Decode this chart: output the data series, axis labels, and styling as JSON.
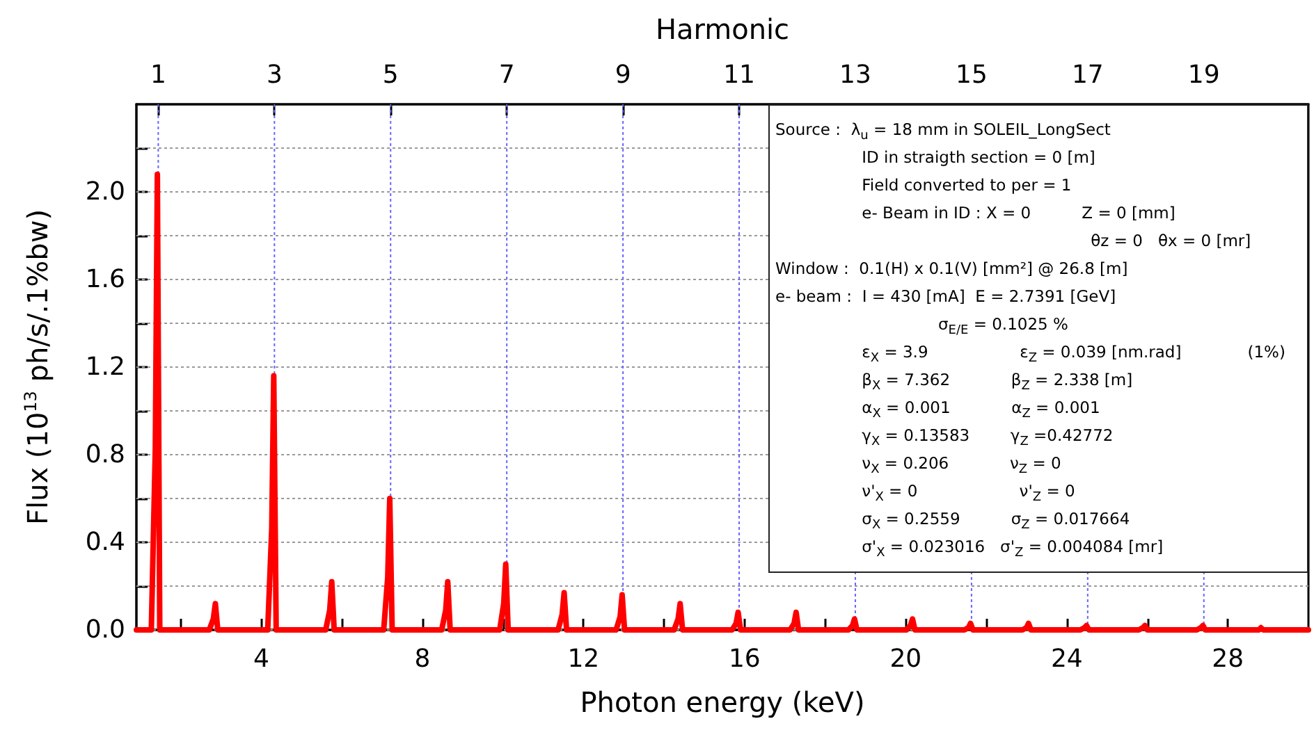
{
  "chart_data": {
    "type": "line",
    "xlabel": "Photon energy (keV)",
    "ylabel": "Flux (10$^{13}$ ph/s/.1%bw)",
    "x2label": "Harmonic",
    "xlim": [
      0.9,
      30
    ],
    "xticks": [
      {
        "value": 2,
        "label": null
      },
      4,
      {
        "value": 6,
        "label": null
      },
      8,
      {
        "value": 10,
        "label": null
      },
      12,
      {
        "value": 14,
        "label": null
      },
      16,
      {
        "value": 18,
        "label": null
      },
      20,
      {
        "value": 22,
        "label": null
      },
      24,
      {
        "value": 26,
        "label": null
      },
      28
    ],
    "x2lim": [
      0.624,
      20.8
    ],
    "x2ticks": [
      1,
      3,
      5,
      7,
      9,
      11,
      13,
      15,
      17,
      19
    ],
    "ylim": [
      0,
      2.4
    ],
    "yticks": [
      {
        "value": 0,
        "label": "0.0"
      },
      {
        "value": 0.2,
        "label": null
      },
      {
        "value": 0.4,
        "label": "0.4"
      },
      {
        "value": 0.6,
        "label": null
      },
      {
        "value": 0.8,
        "label": "0.8"
      },
      {
        "value": 1.0,
        "label": null
      },
      {
        "value": 1.2,
        "label": "1.2"
      },
      {
        "value": 1.4,
        "label": null
      },
      {
        "value": 1.6,
        "label": "1.6"
      },
      {
        "value": 1.8,
        "label": null
      },
      {
        "value": 2.0,
        "label": "2.0"
      },
      {
        "value": 2.2,
        "label": null
      }
    ],
    "grid": true,
    "marker": "none",
    "line_style": "solid",
    "series": [
      {
        "color": "#ff0000",
        "x": [
          0.9,
          1.27,
          1.37,
          1.42,
          1.48,
          2.71,
          2.81,
          2.86,
          2.92,
          4.16,
          4.26,
          4.31,
          4.37,
          5.6,
          5.7,
          5.75,
          5.81,
          7.04,
          7.14,
          7.19,
          7.25,
          8.48,
          8.58,
          8.63,
          8.69,
          9.92,
          10.02,
          10.07,
          10.13,
          11.37,
          11.47,
          11.52,
          11.58,
          12.81,
          12.91,
          12.96,
          13.02,
          14.25,
          14.35,
          14.4,
          14.46,
          15.69,
          15.79,
          15.84,
          15.9,
          17.13,
          17.23,
          17.28,
          17.34,
          18.58,
          18.68,
          18.73,
          18.79,
          20.02,
          20.12,
          20.17,
          20.23,
          21.46,
          21.56,
          21.61,
          21.67,
          22.9,
          23.0,
          23.05,
          23.11,
          24.34,
          24.44,
          24.49,
          24.55,
          25.79,
          25.89,
          25.94,
          26.0,
          27.23,
          27.33,
          27.38,
          27.44,
          28.67,
          28.77,
          28.82,
          28.88,
          30
        ],
        "values": [
          0,
          0,
          0.83,
          2.08,
          0,
          0,
          0.05,
          0.12,
          0,
          0,
          0.46,
          1.16,
          0,
          0,
          0.09,
          0.22,
          0,
          0,
          0.24,
          0.6,
          0,
          0,
          0.09,
          0.22,
          0,
          0,
          0.12,
          0.3,
          0,
          0,
          0.07,
          0.17,
          0,
          0,
          0.06,
          0.16,
          0,
          0,
          0.05,
          0.12,
          0,
          0,
          0.03,
          0.08,
          0,
          0,
          0.03,
          0.08,
          0,
          0,
          0.02,
          0.05,
          0,
          0,
          0.02,
          0.05,
          0,
          0,
          0.01,
          0.03,
          0,
          0,
          0.01,
          0.03,
          0,
          0,
          0.01,
          0.02,
          0,
          0,
          0.01,
          0.02,
          0,
          0,
          0.01,
          0.02,
          0,
          0,
          0,
          0.01,
          0,
          0
        ]
      }
    ],
    "annotations": [
      "Source :  λ$_{u}$ = 18 mm in SOLEIL_LongSect",
      "                 ID in straigth section = 0 [m]",
      "                 Field converted to per = 1",
      "                 e- Beam in ID : X = 0          Z = 0 [mm]",
      "                                                              θz = 0   θx = 0 [mr]",
      "Window :  0.1(H) x 0.1(V) [mm²] @ 26.8 [m]",
      "e- beam :  I = 430 [mA]  E = 2.7391 [GeV]",
      "                                σ$_{E/E}$ = 0.1025 %",
      "                 ε$_{X}$ = 3.9                  ε$_{Z}$ = 0.039 [nm.rad]             (1%)",
      "                 β$_{X}$ = 7.362            β$_{Z}$ = 2.338 [m]",
      "                 α$_{X}$ = 0.001            α$_{Z}$ = 0.001",
      "                 γ$_{X}$ = 0.13583        γ$_{Z}$ =0.42772",
      "                 ν$_{X}$ = 0.206            ν$_{Z}$ = 0",
      "                 ν'$_{X}$ = 0                    ν'$_{Z}$ = 0",
      "                 σ$_{X}$ = 0.2559          σ$_{Z}$ = 0.017664",
      "                 σ'$_{X}$ = 0.023016   σ'$_{Z}$ = 0.004084 [mr]"
    ]
  }
}
